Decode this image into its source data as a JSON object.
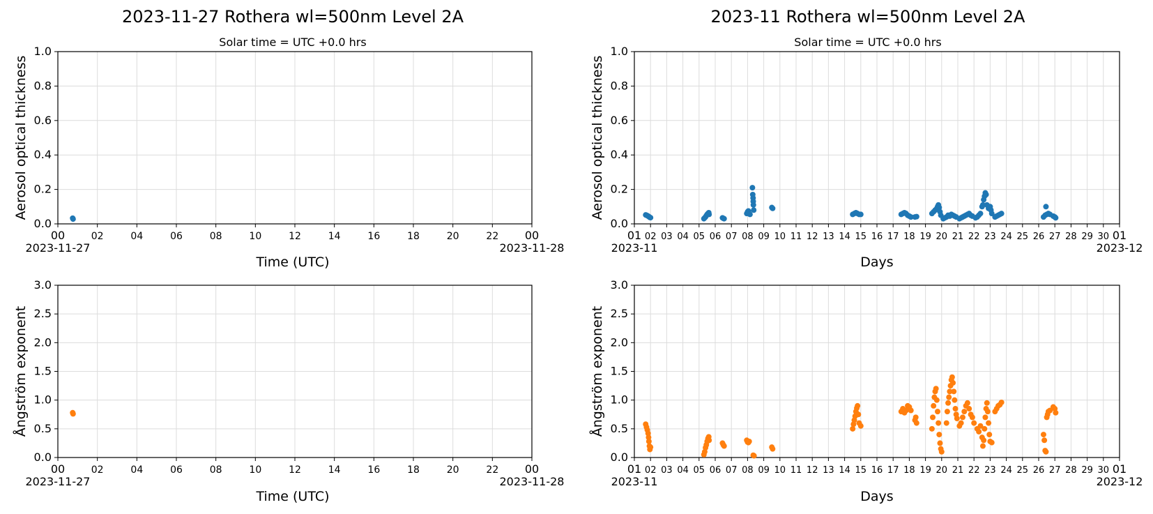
{
  "colors": {
    "aot": "#1f77b4",
    "ae": "#ff7f0e",
    "grid": "#dcdcdc",
    "axis": "#000000"
  },
  "left_title": "2023-11-27  Rothera  wl=500nm  Level 2A",
  "right_title": "2023-11  Rothera  wl=500nm  Level 2A",
  "left_subtitle": "Solar time = UTC +0.0 hrs",
  "right_subtitle": "Solar time = UTC +0.0 hrs",
  "left_xlabel": "Time (UTC)",
  "right_xlabel": "Days",
  "chart_data": [
    {
      "id": "tl",
      "type": "scatter",
      "ylabel": "Aerosol optical thickness",
      "xlabel": "Time (UTC)",
      "ylim": [
        0,
        1.0
      ],
      "yticks": [
        "0.0",
        "0.2",
        "0.4",
        "0.6",
        "0.8",
        "1.0"
      ],
      "xlim": [
        0,
        24
      ],
      "xticks": [
        "00",
        "02",
        "04",
        "06",
        "08",
        "10",
        "12",
        "14",
        "16",
        "18",
        "20",
        "22",
        "00"
      ],
      "xtick_values": [
        0,
        2,
        4,
        6,
        8,
        10,
        12,
        14,
        16,
        18,
        20,
        22,
        24
      ],
      "x_start_label": "2023-11-27",
      "x_end_label": "2023-11-28",
      "grid": true,
      "color": "#1f77b4",
      "points": [
        [
          0.75,
          0.033
        ],
        [
          0.77,
          0.028
        ]
      ]
    },
    {
      "id": "tr",
      "type": "scatter",
      "ylabel": "Aerosol optical thickness",
      "xlabel": "Days",
      "ylim": [
        0,
        1.0
      ],
      "yticks": [
        "0.0",
        "0.2",
        "0.4",
        "0.6",
        "0.8",
        "1.0"
      ],
      "xlim": [
        1,
        31
      ],
      "xticks": [
        "01",
        "02",
        "03",
        "04",
        "05",
        "06",
        "07",
        "08",
        "09",
        "10",
        "11",
        "12",
        "13",
        "14",
        "15",
        "16",
        "17",
        "18",
        "19",
        "20",
        "21",
        "22",
        "23",
        "24",
        "25",
        "26",
        "27",
        "28",
        "29",
        "30",
        "01"
      ],
      "xtick_values": [
        1,
        2,
        3,
        4,
        5,
        6,
        7,
        8,
        9,
        10,
        11,
        12,
        13,
        14,
        15,
        16,
        17,
        18,
        19,
        20,
        21,
        22,
        23,
        24,
        25,
        26,
        27,
        28,
        29,
        30,
        31
      ],
      "x_start_label": "2023-11",
      "x_end_label": "2023-12",
      "grid": true,
      "color": "#1f77b4",
      "points": [
        [
          1.7,
          0.052
        ],
        [
          1.75,
          0.05
        ],
        [
          1.8,
          0.048
        ],
        [
          1.85,
          0.045
        ],
        [
          1.9,
          0.042
        ],
        [
          1.95,
          0.038
        ],
        [
          2.0,
          0.036
        ],
        [
          5.3,
          0.03
        ],
        [
          5.35,
          0.035
        ],
        [
          5.4,
          0.04
        ],
        [
          5.45,
          0.048
        ],
        [
          5.5,
          0.055
        ],
        [
          5.55,
          0.06
        ],
        [
          5.6,
          0.065
        ],
        [
          5.62,
          0.055
        ],
        [
          6.45,
          0.035
        ],
        [
          6.5,
          0.032
        ],
        [
          6.55,
          0.03
        ],
        [
          7.95,
          0.06
        ],
        [
          8.0,
          0.07
        ],
        [
          8.05,
          0.075
        ],
        [
          8.1,
          0.06
        ],
        [
          8.15,
          0.055
        ],
        [
          8.3,
          0.21
        ],
        [
          8.32,
          0.17
        ],
        [
          8.34,
          0.15
        ],
        [
          8.35,
          0.13
        ],
        [
          8.36,
          0.11
        ],
        [
          8.38,
          0.08
        ],
        [
          9.5,
          0.095
        ],
        [
          9.55,
          0.09
        ],
        [
          14.5,
          0.055
        ],
        [
          14.6,
          0.06
        ],
        [
          14.7,
          0.065
        ],
        [
          14.8,
          0.06
        ],
        [
          14.9,
          0.055
        ],
        [
          15.0,
          0.055
        ],
        [
          17.5,
          0.055
        ],
        [
          17.6,
          0.06
        ],
        [
          17.7,
          0.065
        ],
        [
          17.8,
          0.06
        ],
        [
          17.9,
          0.05
        ],
        [
          18.0,
          0.045
        ],
        [
          18.1,
          0.04
        ],
        [
          18.35,
          0.04
        ],
        [
          18.45,
          0.042
        ],
        [
          19.4,
          0.06
        ],
        [
          19.5,
          0.07
        ],
        [
          19.6,
          0.08
        ],
        [
          19.7,
          0.09
        ],
        [
          19.75,
          0.1
        ],
        [
          19.8,
          0.11
        ],
        [
          19.85,
          0.095
        ],
        [
          19.9,
          0.07
        ],
        [
          19.95,
          0.05
        ],
        [
          20.1,
          0.03
        ],
        [
          20.2,
          0.035
        ],
        [
          20.3,
          0.04
        ],
        [
          20.4,
          0.05
        ],
        [
          20.5,
          0.045
        ],
        [
          20.6,
          0.055
        ],
        [
          20.7,
          0.05
        ],
        [
          20.8,
          0.045
        ],
        [
          20.9,
          0.04
        ],
        [
          21.1,
          0.03
        ],
        [
          21.2,
          0.035
        ],
        [
          21.3,
          0.04
        ],
        [
          21.4,
          0.045
        ],
        [
          21.5,
          0.05
        ],
        [
          21.6,
          0.055
        ],
        [
          21.7,
          0.06
        ],
        [
          21.8,
          0.05
        ],
        [
          21.9,
          0.045
        ],
        [
          22.1,
          0.035
        ],
        [
          22.2,
          0.04
        ],
        [
          22.3,
          0.05
        ],
        [
          22.4,
          0.06
        ],
        [
          22.5,
          0.1
        ],
        [
          22.55,
          0.11
        ],
        [
          22.6,
          0.14
        ],
        [
          22.65,
          0.16
        ],
        [
          22.7,
          0.18
        ],
        [
          22.75,
          0.17
        ],
        [
          22.8,
          0.11
        ],
        [
          22.9,
          0.09
        ],
        [
          23.0,
          0.1
        ],
        [
          23.05,
          0.08
        ],
        [
          23.1,
          0.06
        ],
        [
          23.3,
          0.04
        ],
        [
          23.4,
          0.045
        ],
        [
          23.5,
          0.05
        ],
        [
          23.6,
          0.055
        ],
        [
          23.7,
          0.06
        ],
        [
          26.3,
          0.04
        ],
        [
          26.4,
          0.05
        ],
        [
          26.45,
          0.1
        ],
        [
          26.5,
          0.055
        ],
        [
          26.6,
          0.06
        ],
        [
          26.7,
          0.055
        ],
        [
          26.9,
          0.045
        ],
        [
          27.0,
          0.04
        ],
        [
          27.05,
          0.035
        ]
      ]
    },
    {
      "id": "bl",
      "type": "scatter",
      "ylabel": "Ångström exponent",
      "xlabel": "Time (UTC)",
      "ylim": [
        0,
        3.0
      ],
      "yticks": [
        "0.0",
        "0.5",
        "1.0",
        "1.5",
        "2.0",
        "2.5",
        "3.0"
      ],
      "xlim": [
        0,
        24
      ],
      "xticks": [
        "00",
        "02",
        "04",
        "06",
        "08",
        "10",
        "12",
        "14",
        "16",
        "18",
        "20",
        "22",
        "00"
      ],
      "xtick_values": [
        0,
        2,
        4,
        6,
        8,
        10,
        12,
        14,
        16,
        18,
        20,
        22,
        24
      ],
      "x_start_label": "2023-11-27",
      "x_end_label": "2023-11-28",
      "grid": true,
      "color": "#ff7f0e",
      "points": [
        [
          0.75,
          0.78
        ],
        [
          0.77,
          0.76
        ]
      ]
    },
    {
      "id": "br",
      "type": "scatter",
      "ylabel": "Ångström exponent",
      "xlabel": "Days",
      "ylim": [
        0,
        3.0
      ],
      "yticks": [
        "0.0",
        "0.5",
        "1.0",
        "1.5",
        "2.0",
        "2.5",
        "3.0"
      ],
      "xlim": [
        1,
        31
      ],
      "xticks": [
        "01",
        "02",
        "03",
        "04",
        "05",
        "06",
        "07",
        "08",
        "09",
        "10",
        "11",
        "12",
        "13",
        "14",
        "15",
        "16",
        "17",
        "18",
        "19",
        "20",
        "21",
        "22",
        "23",
        "24",
        "25",
        "26",
        "27",
        "28",
        "29",
        "30",
        "01"
      ],
      "xtick_values": [
        1,
        2,
        3,
        4,
        5,
        6,
        7,
        8,
        9,
        10,
        11,
        12,
        13,
        14,
        15,
        16,
        17,
        18,
        19,
        20,
        21,
        22,
        23,
        24,
        25,
        26,
        27,
        28,
        29,
        30,
        31
      ],
      "x_start_label": "2023-11",
      "x_end_label": "2023-12",
      "grid": true,
      "color": "#ff7f0e",
      "points": [
        [
          1.7,
          0.58
        ],
        [
          1.75,
          0.53
        ],
        [
          1.8,
          0.48
        ],
        [
          1.85,
          0.42
        ],
        [
          1.88,
          0.35
        ],
        [
          1.9,
          0.28
        ],
        [
          1.93,
          0.2
        ],
        [
          1.96,
          0.14
        ],
        [
          2.0,
          0.18
        ],
        [
          5.3,
          0.05
        ],
        [
          5.35,
          0.1
        ],
        [
          5.4,
          0.17
        ],
        [
          5.45,
          0.22
        ],
        [
          5.5,
          0.28
        ],
        [
          5.55,
          0.33
        ],
        [
          5.6,
          0.36
        ],
        [
          5.62,
          0.3
        ],
        [
          6.45,
          0.25
        ],
        [
          6.5,
          0.22
        ],
        [
          6.55,
          0.2
        ],
        [
          7.95,
          0.3
        ],
        [
          8.0,
          0.27
        ],
        [
          8.05,
          0.26
        ],
        [
          8.1,
          0.28
        ],
        [
          8.35,
          0.04
        ],
        [
          8.4,
          0.03
        ],
        [
          9.5,
          0.18
        ],
        [
          9.55,
          0.15
        ],
        [
          14.5,
          0.5
        ],
        [
          14.55,
          0.58
        ],
        [
          14.6,
          0.65
        ],
        [
          14.65,
          0.72
        ],
        [
          14.7,
          0.8
        ],
        [
          14.75,
          0.86
        ],
        [
          14.8,
          0.9
        ],
        [
          14.85,
          0.75
        ],
        [
          14.9,
          0.6
        ],
        [
          15.0,
          0.55
        ],
        [
          17.5,
          0.8
        ],
        [
          17.6,
          0.85
        ],
        [
          17.7,
          0.78
        ],
        [
          17.8,
          0.82
        ],
        [
          17.9,
          0.9
        ],
        [
          18.0,
          0.88
        ],
        [
          18.1,
          0.82
        ],
        [
          18.35,
          0.65
        ],
        [
          18.4,
          0.7
        ],
        [
          18.45,
          0.6
        ],
        [
          19.4,
          0.5
        ],
        [
          19.45,
          0.7
        ],
        [
          19.5,
          0.9
        ],
        [
          19.55,
          1.05
        ],
        [
          19.6,
          1.15
        ],
        [
          19.65,
          1.2
        ],
        [
          19.7,
          1.0
        ],
        [
          19.75,
          0.8
        ],
        [
          19.8,
          0.6
        ],
        [
          19.85,
          0.4
        ],
        [
          19.9,
          0.25
        ],
        [
          19.95,
          0.15
        ],
        [
          20.0,
          0.1
        ],
        [
          20.3,
          0.6
        ],
        [
          20.35,
          0.8
        ],
        [
          20.4,
          0.95
        ],
        [
          20.45,
          1.05
        ],
        [
          20.5,
          1.15
        ],
        [
          20.55,
          1.25
        ],
        [
          20.6,
          1.35
        ],
        [
          20.65,
          1.4
        ],
        [
          20.7,
          1.3
        ],
        [
          20.75,
          1.15
        ],
        [
          20.8,
          1.0
        ],
        [
          20.85,
          0.85
        ],
        [
          20.9,
          0.75
        ],
        [
          20.95,
          0.68
        ],
        [
          21.1,
          0.55
        ],
        [
          21.2,
          0.6
        ],
        [
          21.3,
          0.7
        ],
        [
          21.4,
          0.8
        ],
        [
          21.5,
          0.9
        ],
        [
          21.6,
          0.95
        ],
        [
          21.7,
          0.85
        ],
        [
          21.8,
          0.75
        ],
        [
          21.9,
          0.7
        ],
        [
          22.0,
          0.6
        ],
        [
          22.2,
          0.5
        ],
        [
          22.3,
          0.45
        ],
        [
          22.4,
          0.55
        ],
        [
          22.5,
          0.35
        ],
        [
          22.55,
          0.2
        ],
        [
          22.6,
          0.3
        ],
        [
          22.65,
          0.5
        ],
        [
          22.7,
          0.7
        ],
        [
          22.75,
          0.85
        ],
        [
          22.8,
          0.95
        ],
        [
          22.85,
          0.8
        ],
        [
          22.9,
          0.6
        ],
        [
          22.95,
          0.4
        ],
        [
          23.0,
          0.28
        ],
        [
          23.1,
          0.26
        ],
        [
          23.3,
          0.8
        ],
        [
          23.4,
          0.85
        ],
        [
          23.5,
          0.9
        ],
        [
          23.6,
          0.92
        ],
        [
          23.7,
          0.96
        ],
        [
          26.3,
          0.4
        ],
        [
          26.35,
          0.3
        ],
        [
          26.4,
          0.12
        ],
        [
          26.45,
          0.1
        ],
        [
          26.5,
          0.7
        ],
        [
          26.55,
          0.75
        ],
        [
          26.6,
          0.8
        ],
        [
          26.7,
          0.82
        ],
        [
          26.9,
          0.88
        ],
        [
          27.0,
          0.85
        ],
        [
          27.05,
          0.78
        ]
      ]
    }
  ]
}
